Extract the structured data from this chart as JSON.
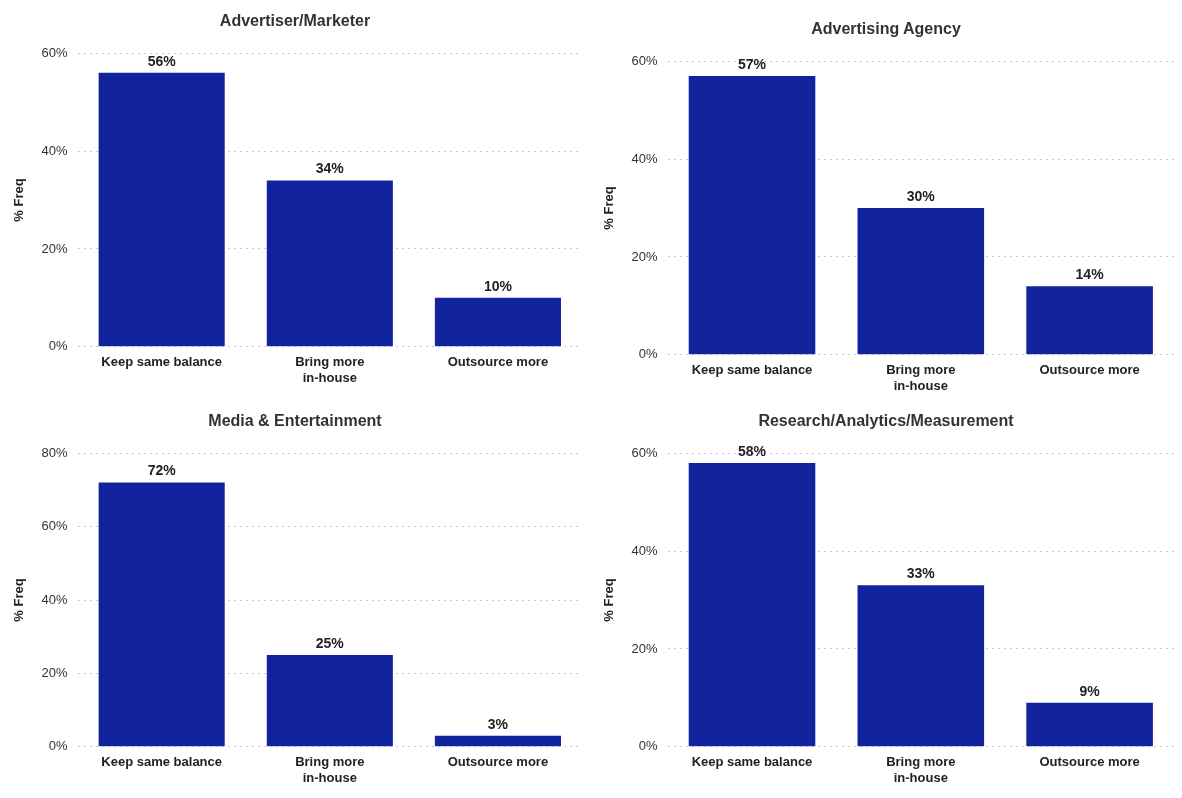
{
  "chart_data": [
    {
      "type": "bar",
      "title": "Advertiser/Marketer",
      "ylabel": "% Freq",
      "categories": [
        "Keep same balance",
        "Bring more in-house",
        "Outsource more"
      ],
      "values": [
        56,
        34,
        10
      ],
      "value_labels": [
        "56%",
        "34%",
        "10%"
      ],
      "color": "#12239e",
      "ylim": [
        0,
        60
      ],
      "yticks": [
        {
          "value": 0,
          "label": "0%"
        },
        {
          "value": 20,
          "label": "20%"
        },
        {
          "value": 40,
          "label": "40%"
        },
        {
          "value": 60,
          "label": "60%"
        }
      ],
      "grid": "y"
    },
    {
      "type": "bar",
      "title": "Advertising Agency",
      "ylabel": "% Freq",
      "categories": [
        "Keep same balance",
        "Bring more in-house",
        "Outsource more"
      ],
      "values": [
        57,
        30,
        14
      ],
      "value_labels": [
        "57%",
        "30%",
        "14%"
      ],
      "color": "#12239e",
      "ylim": [
        0,
        60
      ],
      "yticks": [
        {
          "value": 0,
          "label": "0%"
        },
        {
          "value": 20,
          "label": "20%"
        },
        {
          "value": 40,
          "label": "40%"
        },
        {
          "value": 60,
          "label": "60%"
        }
      ],
      "grid": "y"
    },
    {
      "type": "bar",
      "title": "Media & Entertainment",
      "ylabel": "% Freq",
      "categories": [
        "Keep same balance",
        "Bring more in-house",
        "Outsource more"
      ],
      "values": [
        72,
        25,
        3
      ],
      "value_labels": [
        "72%",
        "25%",
        "3%"
      ],
      "color": "#12239e",
      "ylim": [
        0,
        80
      ],
      "yticks": [
        {
          "value": 0,
          "label": "0%"
        },
        {
          "value": 20,
          "label": "20%"
        },
        {
          "value": 40,
          "label": "40%"
        },
        {
          "value": 60,
          "label": "60%"
        },
        {
          "value": 80,
          "label": "80%"
        }
      ],
      "grid": "y"
    },
    {
      "type": "bar",
      "title": "Research/Analytics/Measurement",
      "ylabel": "% Freq",
      "categories": [
        "Keep same balance",
        "Bring more in-house",
        "Outsource more"
      ],
      "values": [
        58,
        33,
        9
      ],
      "value_labels": [
        "58%",
        "33%",
        "9%"
      ],
      "color": "#12239e",
      "ylim": [
        0,
        60
      ],
      "yticks": [
        {
          "value": 0,
          "label": "0%"
        },
        {
          "value": 20,
          "label": "20%"
        },
        {
          "value": 40,
          "label": "40%"
        },
        {
          "value": 60,
          "label": "60%"
        }
      ],
      "grid": "y"
    }
  ]
}
